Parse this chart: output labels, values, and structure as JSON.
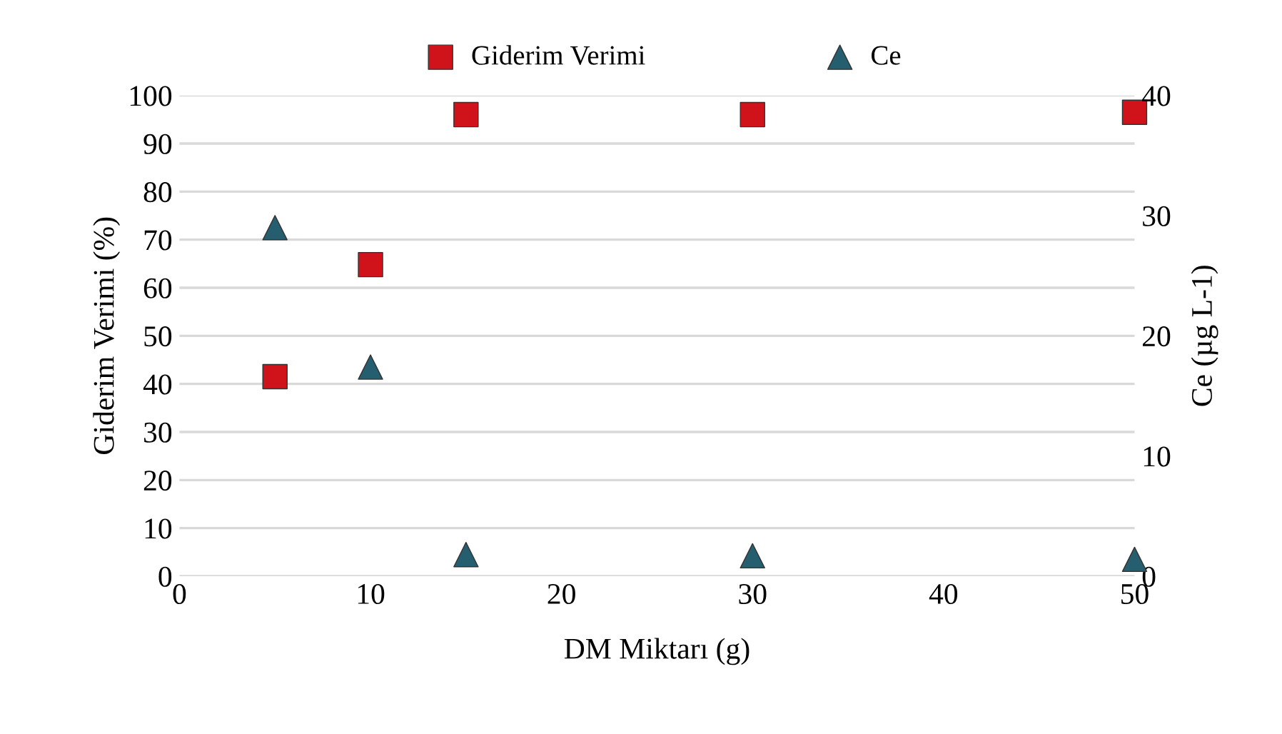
{
  "chart_data": {
    "type": "scatter",
    "xlabel": "DM Miktarı (g)",
    "ylabel": "Giderim Verimi (%)",
    "y2label": "Ce (µg L-1)",
    "xlim": [
      0,
      50
    ],
    "xticks": [
      0,
      10,
      20,
      30,
      40,
      50
    ],
    "ylim": [
      0,
      100
    ],
    "yticks": [
      0,
      10,
      20,
      30,
      40,
      50,
      60,
      70,
      80,
      90,
      100
    ],
    "y2lim": [
      0,
      40
    ],
    "y2ticks": [
      0,
      10,
      20,
      30,
      40
    ],
    "grid": "y",
    "legend": "top",
    "series": [
      {
        "name": "Giderim Verimi",
        "color": "#d0121b",
        "marker": "square",
        "x": [
          5,
          10,
          15,
          30,
          50
        ],
        "values": [
          41.5,
          64.8,
          96,
          96,
          96.5
        ]
      },
      {
        "name": "Ce",
        "color": "#255e6e",
        "marker": "triangle",
        "axis": "y2",
        "x": [
          5,
          10,
          15,
          30,
          50
        ],
        "values": [
          29,
          17.4,
          1.8,
          1.7,
          1.4
        ]
      }
    ]
  }
}
